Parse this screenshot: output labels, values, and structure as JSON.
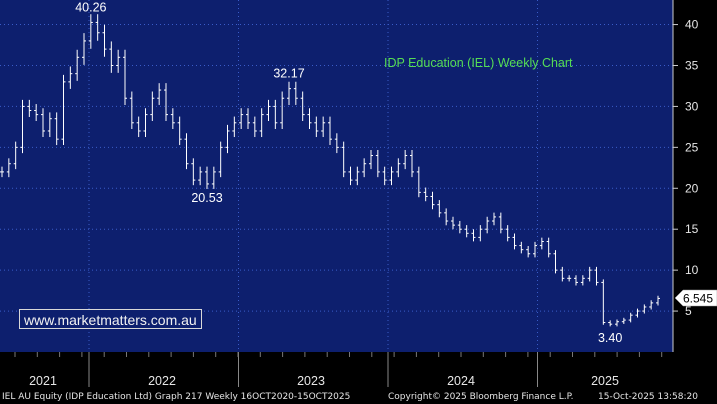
{
  "chart_data": {
    "type": "line",
    "title": "IDP Education (IEL) Weekly Chart",
    "x_labels": [
      "2021",
      "2022",
      "2023",
      "2024",
      "2025"
    ],
    "y_ticks": [
      5,
      10,
      15,
      20,
      25,
      30,
      35,
      40
    ],
    "ylim": [
      0,
      43
    ],
    "grid": true,
    "series": [
      {
        "values": [
          22,
          23,
          25,
          30,
          29.5,
          29,
          27,
          28.5,
          26,
          33,
          34,
          36,
          38,
          40.26,
          39,
          37,
          35,
          36,
          31,
          28,
          27,
          29,
          31,
          32,
          29,
          28,
          26,
          23,
          21,
          22,
          20.53,
          22,
          25,
          27,
          28,
          29,
          28,
          27,
          29,
          30,
          28,
          31,
          32.17,
          31,
          29,
          28,
          27,
          28,
          26,
          25,
          22,
          21,
          22,
          23,
          24,
          22,
          21,
          22,
          23,
          24,
          22,
          19.5,
          19,
          18,
          17,
          16,
          15.5,
          15,
          14.5,
          14,
          15,
          16,
          16.5,
          15,
          14,
          13,
          12.5,
          12,
          13,
          13.5,
          12,
          10,
          9,
          9,
          8.5,
          9,
          10,
          8.5,
          3.6,
          3.4,
          3.7,
          3.9,
          4.5,
          5,
          5.5,
          6,
          6.545
        ],
        "color": "#ffffff"
      }
    ],
    "annotations": [
      "40.26",
      "32.17",
      "20.53",
      "3.40"
    ],
    "last_value": "6.545"
  },
  "watermark": "www.marketmatters.com.au",
  "footer": {
    "left": "IEL AU Equity (IDP Education Ltd) Graph 217 Weekly 16OCT2020-15OCT2025",
    "center": "Copyright© 2025 Bloomberg Finance L.P.",
    "right": "15-Oct-2025 13:58:20"
  },
  "colors": {
    "background": "#0d1f6e",
    "grid": "#3a5cc8",
    "title": "#55dd55",
    "price_line": "#ffffff"
  }
}
